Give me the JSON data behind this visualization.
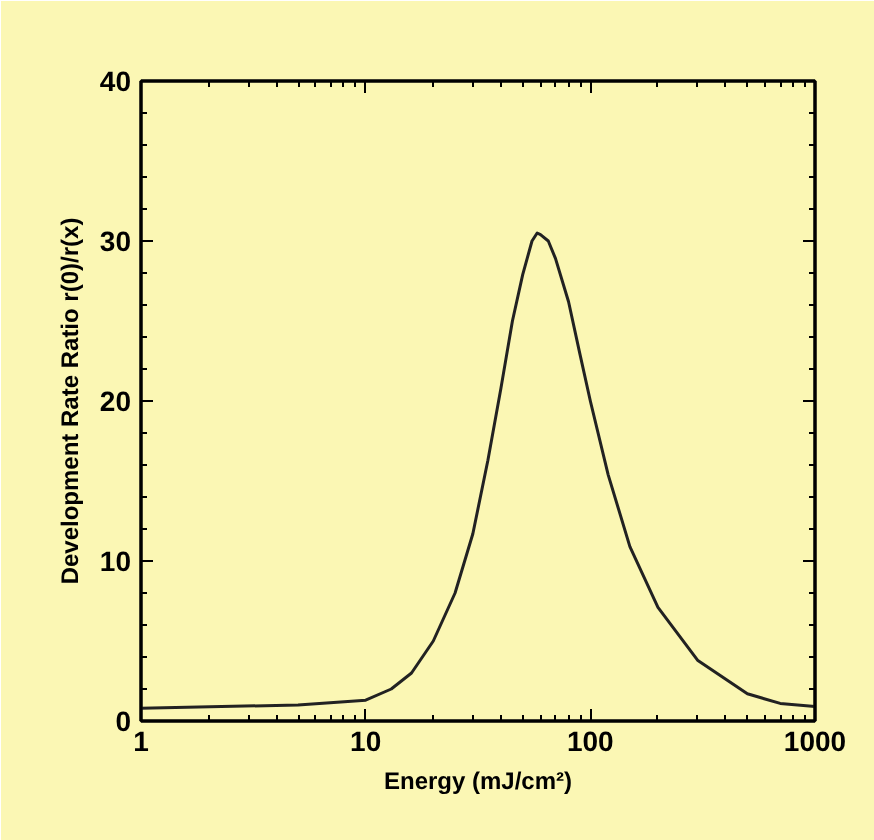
{
  "chart_data": {
    "type": "line",
    "xlabel": "Energy (mJ/cm²)",
    "ylabel": "Development Rate Ratio r(0)/r(x)",
    "log": "x",
    "xlim": [
      1,
      1000
    ],
    "xticks": [
      1,
      10,
      100,
      1000
    ],
    "ylim": [
      0,
      40
    ],
    "yticks": [
      0,
      10,
      20,
      30,
      40
    ],
    "marker": "none",
    "line_style": "solid",
    "x": [
      1,
      5,
      10,
      13,
      16,
      20,
      25,
      30,
      35,
      40,
      45,
      50,
      55,
      58,
      60,
      65,
      70,
      80,
      90,
      100,
      120,
      150,
      200,
      300,
      500,
      700,
      1000
    ],
    "series": [
      {
        "color": "#222222",
        "values": [
          0.8,
          1.0,
          1.3,
          2.0,
          3.0,
          5.0,
          8.0,
          11.7,
          16.3,
          20.8,
          25.0,
          27.9,
          30.0,
          30.5,
          30.4,
          30.0,
          28.9,
          26.2,
          22.9,
          20.0,
          15.4,
          10.9,
          7.1,
          3.8,
          1.7,
          1.1,
          0.9
        ]
      }
    ]
  }
}
